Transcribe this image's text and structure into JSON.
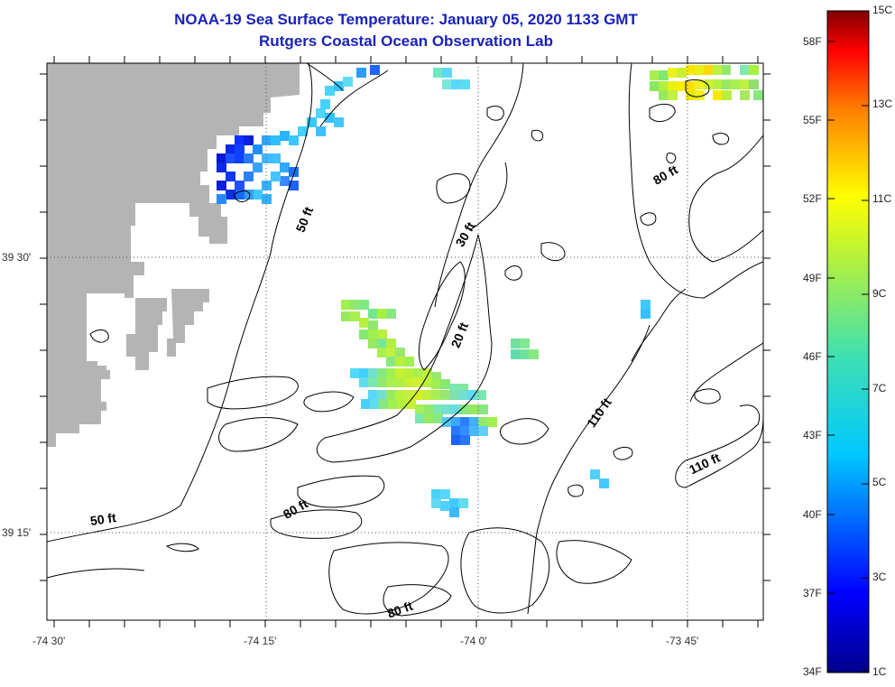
{
  "title": "NOAA-19 Sea Surface Temperature:  January 05, 2020 1133 GMT",
  "subtitle": "Rutgers Coastal Ocean Observation Lab",
  "axes": {
    "lon_labels": [
      "-74 30'",
      "-74 15'",
      "-74 0'",
      "-73 45'"
    ],
    "lat_labels": [
      "39 30'",
      "39 15'"
    ]
  },
  "depth_labels": [
    "50 ft",
    "30 ft",
    "80 ft",
    "20 ft",
    "110 ft",
    "110 ft",
    "50 ft",
    "80 ft",
    "80 ft"
  ],
  "colorbar": {
    "fahrenheit": [
      "58F",
      "55F",
      "52F",
      "49F",
      "46F",
      "43F",
      "40F",
      "37F",
      "34F"
    ],
    "celsius": [
      "15C",
      "13C",
      "11C",
      "9C",
      "7C",
      "5C",
      "3C",
      "1C"
    ],
    "min_c": 1,
    "max_c": 15
  },
  "colors": {
    "land": "#b4b4b4",
    "title": "#1a22b8"
  }
}
